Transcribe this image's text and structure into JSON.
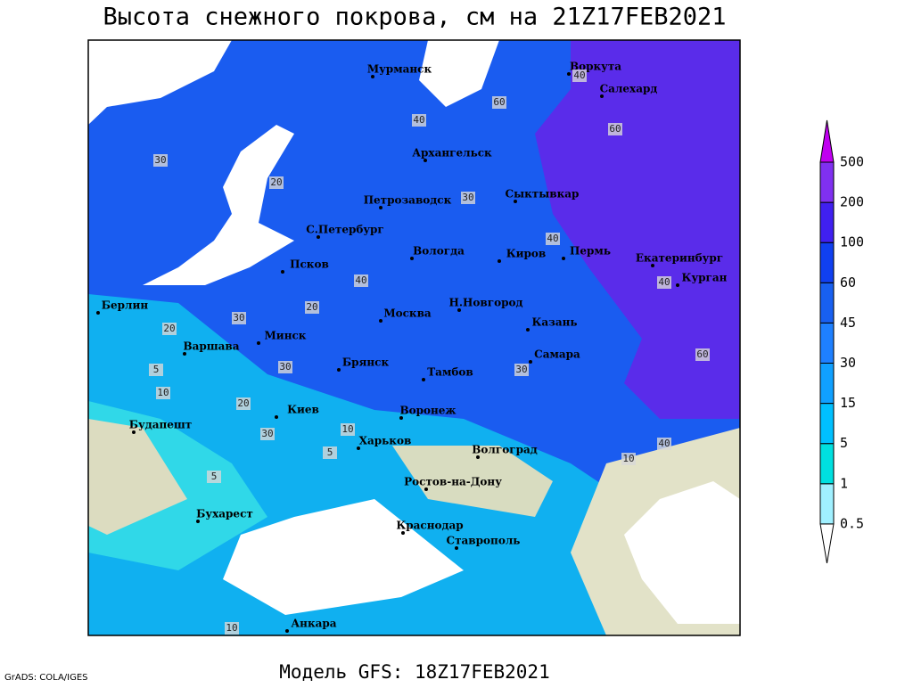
{
  "header": {
    "title": "Высота снежного покрова, см на 21Z17FEB2021",
    "subtitle": "Модель GFS: 18Z17FEB2021",
    "credit": "GrADS: COLA/IGES"
  },
  "legend": {
    "levels": [
      0.5,
      1,
      5,
      15,
      30,
      45,
      60,
      100,
      200,
      500
    ],
    "colors": [
      "#ffffff",
      "#a0f0ff",
      "#00e0e0",
      "#00c0ff",
      "#10a0ff",
      "#1e80ff",
      "#1860f0",
      "#1040f0",
      "#4020f0",
      "#8030f0",
      "#c000f0"
    ]
  },
  "map": {
    "cities": [
      "Мурманск",
      "Воркута",
      "Салехард",
      "Архангельск",
      "Петрозаводск",
      "Сыктывкар",
      "С.Петербург",
      "Вологда",
      "Киров",
      "Пермь",
      "Екатеринбург",
      "Курган",
      "Псков",
      "Берлин",
      "Н.Новгород",
      "Москва",
      "Казань",
      "Варшава",
      "Минск",
      "Самара",
      "Брянск",
      "Тамбов",
      "Воронеж",
      "Киев",
      "Будапешт",
      "Харьков",
      "Волгоград",
      "Ростов-на-Дону",
      "Бухарест",
      "Краснодар",
      "Ставрополь",
      "Анкара"
    ],
    "contour_labels": [
      60,
      40,
      40,
      60,
      30,
      20,
      40,
      30,
      20,
      30,
      30,
      40,
      60,
      40,
      20,
      10,
      5,
      20,
      30,
      10,
      5,
      10,
      40,
      30,
      5,
      10
    ]
  }
}
